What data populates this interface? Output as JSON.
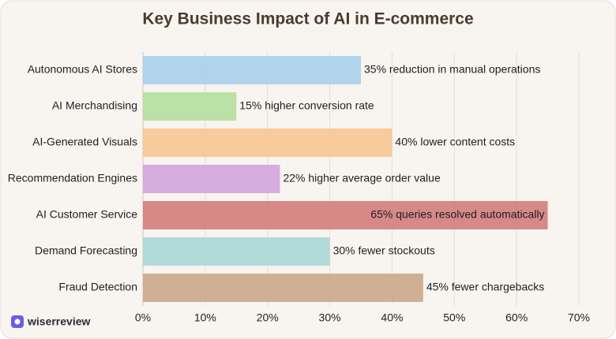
{
  "chart_data": {
    "type": "bar",
    "orientation": "horizontal",
    "title": "Key Business Impact of AI in E-commerce",
    "categories": [
      "Autonomous AI Stores",
      "AI Merchandising",
      "AI-Generated Visuals",
      "Recommendation Engines",
      "AI Customer Service",
      "Demand Forecasting",
      "Fraud Detection"
    ],
    "values": [
      35,
      15,
      40,
      22,
      65,
      30,
      45
    ],
    "value_labels": [
      "35% reduction in manual operations",
      "15% higher conversion rate",
      "40% lower content costs",
      "22% higher average order value",
      "65% queries resolved automatically",
      "30% fewer stockouts",
      "45% fewer chargebacks"
    ],
    "colors": [
      "#a9d0ec",
      "#b5dea0",
      "#f7c795",
      "#d3a6dc",
      "#d47f7f",
      "#a9d8d6",
      "#cba98d"
    ],
    "xlim": [
      0,
      70
    ],
    "xticks": [
      {
        "value": 0,
        "label": "0%"
      },
      {
        "value": 10,
        "label": "10%"
      },
      {
        "value": 20,
        "label": "20%"
      },
      {
        "value": 30,
        "label": "30%"
      },
      {
        "value": 40,
        "label": "40%"
      },
      {
        "value": 50,
        "label": "50%"
      },
      {
        "value": 60,
        "label": "60%"
      },
      {
        "value": 70,
        "label": "70%"
      }
    ],
    "grid": true
  },
  "brand": "wiserreview"
}
